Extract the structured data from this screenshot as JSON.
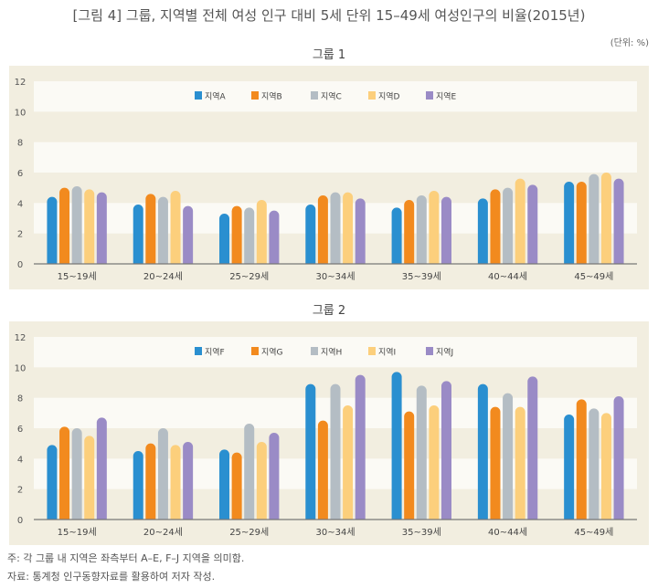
{
  "title": "[그림 4] 그룹, 지역별 전체 여성 인구 대비 5세 단위 15–49세 여성인구의 비율(2015년)",
  "unit": "(단위: %)",
  "colors": [
    "#2a8fd0",
    "#f28a1e",
    "#b4bdc4",
    "#fccf7c",
    "#9a8bc6"
  ],
  "chart_data": [
    {
      "type": "bar",
      "title": "그룹 1",
      "categories": [
        "15~19세",
        "20~24세",
        "25~29세",
        "30~34세",
        "35~39세",
        "40~44세",
        "45~49세"
      ],
      "ylim": [
        0,
        12
      ],
      "yticks": [
        "0",
        "2",
        "4",
        "6",
        "8",
        "10",
        "12"
      ],
      "legend": "top-center",
      "series": [
        {
          "name": "지역A",
          "values": [
            4.4,
            3.9,
            3.3,
            3.9,
            3.7,
            4.3,
            5.4
          ]
        },
        {
          "name": "지역B",
          "values": [
            5.0,
            4.6,
            3.8,
            4.5,
            4.2,
            4.9,
            5.4
          ]
        },
        {
          "name": "지역C",
          "values": [
            5.1,
            4.4,
            3.7,
            4.7,
            4.5,
            5.0,
            5.9
          ]
        },
        {
          "name": "지역D",
          "values": [
            4.9,
            4.8,
            4.2,
            4.7,
            4.8,
            5.6,
            6.0
          ]
        },
        {
          "name": "지역E",
          "values": [
            4.7,
            3.8,
            3.5,
            4.3,
            4.4,
            5.2,
            5.6
          ]
        }
      ]
    },
    {
      "type": "bar",
      "title": "그룹 2",
      "categories": [
        "15~19세",
        "20~24세",
        "25~29세",
        "30~34세",
        "35~39세",
        "40~44세",
        "45~49세"
      ],
      "ylim": [
        0,
        12
      ],
      "yticks": [
        "0",
        "2",
        "4",
        "6",
        "8",
        "10",
        "12"
      ],
      "legend": "top-center",
      "series": [
        {
          "name": "지역F",
          "values": [
            4.9,
            4.5,
            4.6,
            8.9,
            9.7,
            8.9,
            6.9
          ]
        },
        {
          "name": "지역G",
          "values": [
            6.1,
            5.0,
            4.4,
            6.5,
            7.1,
            7.4,
            7.9
          ]
        },
        {
          "name": "지역H",
          "values": [
            6.0,
            6.0,
            6.3,
            8.9,
            8.8,
            8.3,
            7.3
          ]
        },
        {
          "name": "지역I",
          "values": [
            5.5,
            4.9,
            5.1,
            7.5,
            7.5,
            7.4,
            7.0
          ]
        },
        {
          "name": "지역J",
          "values": [
            6.7,
            5.1,
            5.7,
            9.5,
            9.1,
            9.4,
            8.1
          ]
        }
      ]
    }
  ],
  "notes": [
    "주: 각 그룹 내 지역은 좌측부터 A–E, F–J 지역을 의미함.",
    "자료: 통계청 인구동향자료를 활용하여 저자 작성."
  ]
}
